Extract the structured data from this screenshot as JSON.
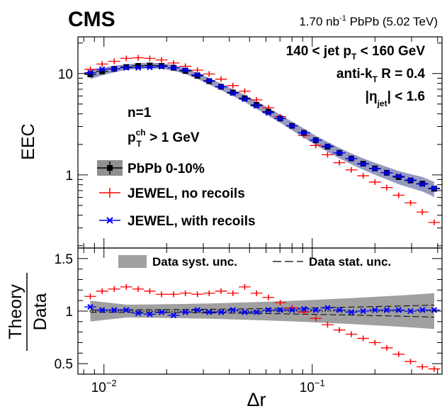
{
  "header": {
    "experiment": "CMS",
    "lumi_value": "1.70 nb",
    "lumi_exp": "-1",
    "lumi_rest": " PbPb (5.02 TeV)"
  },
  "top_text": {
    "cut_pt": "140 < jet p",
    "cut_pt_sub": "T",
    "cut_pt_rest": " < 160 GeV",
    "algo": "anti-k",
    "algo_sub": "T",
    "algo_rest": " R = 0.4",
    "eta_pre": "|η",
    "eta_sub": "jet",
    "eta_rest": "| < 1.6",
    "n_label": "n=1",
    "pt_cut": "p",
    "pt_cut_sup": "ch",
    "pt_cut_sub": "T",
    "pt_cut_rest": " > 1 GeV"
  },
  "legend": {
    "data": "PbPb 0-10%",
    "nore": "JEWEL, no recoils",
    "rec": "JEWEL, with recoils"
  },
  "ratio_legend": {
    "syst": "Data syst. unc.",
    "stat": "Data stat. unc."
  },
  "axes": {
    "top_ylabel": "EEC",
    "ratio_ylabel_num": "Theory",
    "ratio_ylabel_den": "Data",
    "xlabel": "Δr",
    "x_ticks": [
      "10",
      "10"
    ],
    "x_tick_exps": [
      "−2",
      "−1"
    ],
    "top_y_ticks": [
      "10",
      "1"
    ],
    "ratio_y_ticks": [
      "1.5",
      "1",
      "0.5"
    ]
  },
  "colors": {
    "data": "#000000",
    "band": "#8c8fb8",
    "nore": "#ff0000",
    "rec": "#0000ff",
    "syst": "#a0a0a0"
  },
  "chart_data": [
    {
      "type": "scatter",
      "title": "",
      "xlabel": "Δr",
      "ylabel": "EEC",
      "xscale": "log",
      "yscale": "log",
      "xlim": [
        0.0075,
        0.42
      ],
      "ylim": [
        0.19,
        23
      ],
      "x": [
        0.0086,
        0.0098,
        0.0112,
        0.0128,
        0.0146,
        0.0166,
        0.0189,
        0.0216,
        0.0246,
        0.0281,
        0.032,
        0.0365,
        0.0416,
        0.0474,
        0.054,
        0.0616,
        0.0702,
        0.08,
        0.0912,
        0.104,
        0.1185,
        0.1351,
        0.154,
        0.1756,
        0.2,
        0.228,
        0.26,
        0.2965,
        0.338,
        0.385
      ],
      "series": [
        {
          "name": "PbPb 0-10%",
          "values": [
            9.8,
            10.5,
            11.1,
            11.6,
            11.9,
            12.0,
            11.9,
            11.4,
            10.6,
            9.5,
            8.4,
            7.4,
            6.5,
            5.7,
            4.9,
            4.2,
            3.6,
            3.05,
            2.6,
            2.2,
            1.9,
            1.65,
            1.45,
            1.29,
            1.16,
            1.05,
            0.95,
            0.88,
            0.82,
            0.73
          ]
        },
        {
          "name": "JEWEL, no recoils",
          "values": [
            11.0,
            12.4,
            13.2,
            14.1,
            14.3,
            14.1,
            13.6,
            12.7,
            11.8,
            10.8,
            9.9,
            8.8,
            7.6,
            6.7,
            5.5,
            4.6,
            3.75,
            3.05,
            2.45,
            1.95,
            1.58,
            1.32,
            1.12,
            0.98,
            0.85,
            0.75,
            0.63,
            0.53,
            0.43,
            0.34
          ]
        },
        {
          "name": "JEWEL, with recoils",
          "values": [
            10.2,
            11.0,
            11.1,
            11.4,
            11.4,
            11.5,
            11.7,
            11.4,
            10.8,
            9.7,
            8.5,
            7.4,
            6.4,
            5.6,
            4.8,
            4.1,
            3.6,
            3.05,
            2.6,
            2.2,
            1.92,
            1.65,
            1.45,
            1.28,
            1.15,
            1.05,
            0.97,
            0.89,
            0.81,
            0.74
          ]
        }
      ]
    },
    {
      "type": "scatter",
      "title": "",
      "xlabel": "Δr",
      "ylabel": "Theory / Data",
      "xscale": "log",
      "xlim": [
        0.0075,
        0.42
      ],
      "ylim": [
        0.4,
        1.6
      ],
      "x": [
        0.0086,
        0.0098,
        0.0112,
        0.0128,
        0.0146,
        0.0166,
        0.0189,
        0.0216,
        0.0246,
        0.0281,
        0.032,
        0.0365,
        0.0416,
        0.0474,
        0.054,
        0.0616,
        0.0702,
        0.08,
        0.0912,
        0.104,
        0.1185,
        0.1351,
        0.154,
        0.1756,
        0.2,
        0.228,
        0.26,
        0.2965,
        0.338,
        0.385
      ],
      "series": [
        {
          "name": "JEWEL, no recoils",
          "values": [
            1.14,
            1.19,
            1.21,
            1.23,
            1.21,
            1.19,
            1.16,
            1.16,
            1.17,
            1.16,
            1.17,
            1.19,
            1.17,
            1.23,
            1.17,
            1.13,
            1.08,
            1.03,
            0.99,
            0.93,
            0.87,
            0.82,
            0.78,
            0.74,
            0.7,
            0.65,
            0.59,
            0.52,
            0.47,
            0.45
          ]
        },
        {
          "name": "JEWEL, with recoils",
          "values": [
            1.04,
            1.01,
            1.01,
            1.01,
            0.98,
            0.97,
            0.99,
            0.96,
            0.99,
            1.01,
            0.99,
            0.99,
            1.01,
            0.99,
            0.99,
            1.01,
            1.01,
            1.01,
            1.02,
            1.01,
            1.03,
            1.01,
            0.99,
            1.0,
            1.01,
            1.01,
            1.01,
            1.0,
            1.01,
            1.01
          ]
        }
      ]
    }
  ]
}
